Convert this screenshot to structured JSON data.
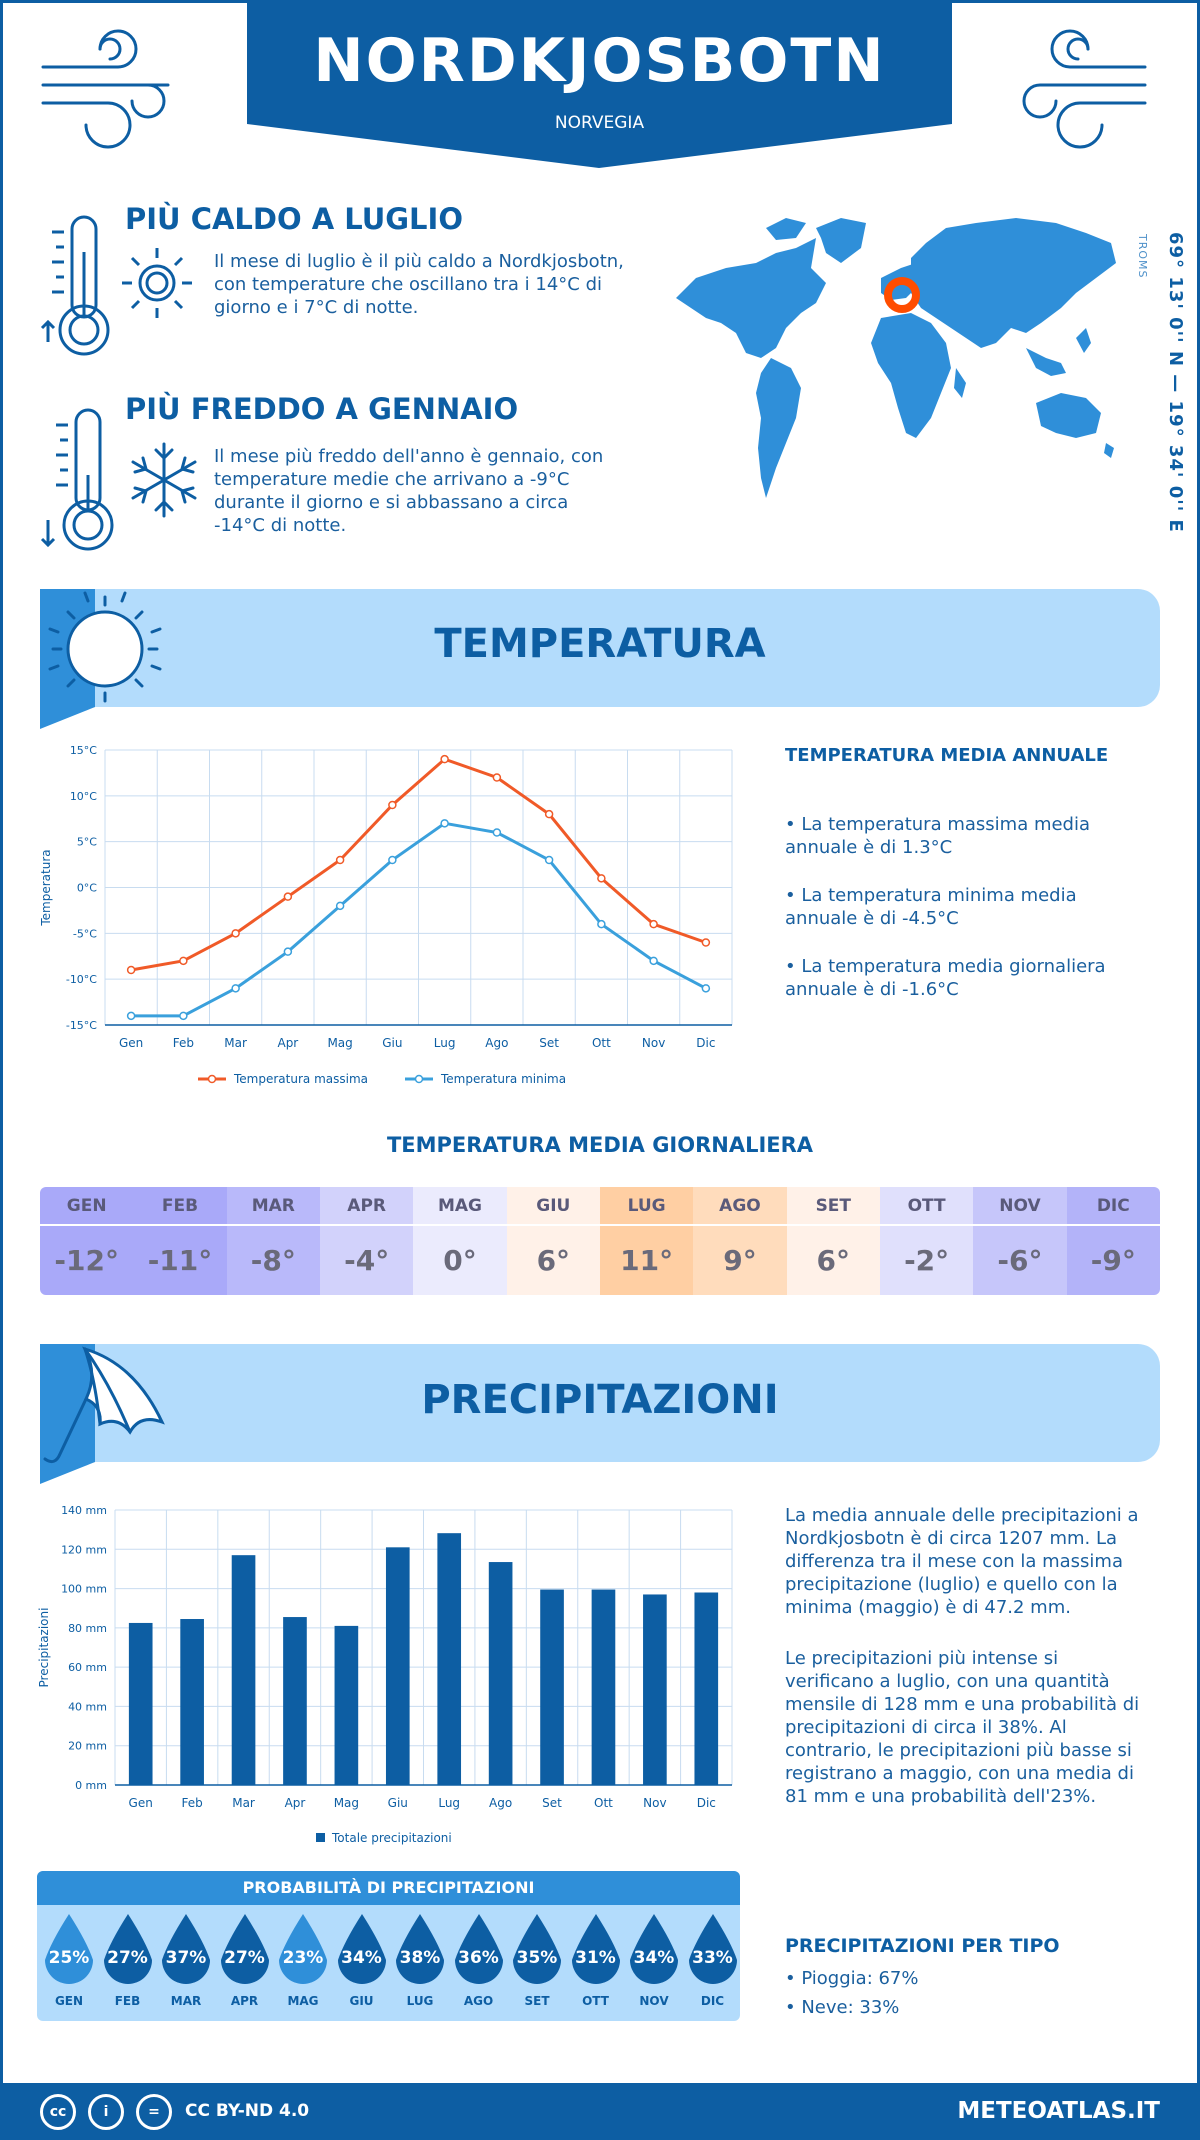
{
  "header": {
    "city": "NORDKJOSBOTN",
    "country": "NORVEGIA"
  },
  "warm": {
    "title": "PIÙ CALDO A LUGLIO",
    "text": "Il mese di luglio è il più caldo a Nordkjosbotn, con temperature che oscillano tra i 14°C di giorno e i 7°C di notte."
  },
  "cold": {
    "title": "PIÙ FREDDO A GENNAIO",
    "text": "Il mese più freddo dell'anno è gennaio, con temperature medie che arrivano a -9°C durante il giorno e si abbassano a circa -14°C di notte."
  },
  "location": {
    "coords": "69° 13' 0'' N — 19° 34' 0'' E",
    "region": "TROMS"
  },
  "temperature_section": {
    "title": "TEMPERATURA",
    "annual_title": "TEMPERATURA MEDIA ANNUALE",
    "annual_max": "• La temperatura massima media annuale è di 1.3°C",
    "annual_min": "• La temperatura minima media annuale è di -4.5°C",
    "annual_avg": "• La temperatura media giornaliera annuale è di -1.6°C",
    "daily_title": "TEMPERATURA MEDIA GIORNALIERA"
  },
  "daily": [
    {
      "m": "GEN",
      "v": "-12°",
      "bg": "#a9a9f9"
    },
    {
      "m": "FEB",
      "v": "-11°",
      "bg": "#a9a9f9"
    },
    {
      "m": "MAR",
      "v": "-8°",
      "bg": "#b9b9fa"
    },
    {
      "m": "APR",
      "v": "-4°",
      "bg": "#d2d2fb"
    },
    {
      "m": "MAG",
      "v": "0°",
      "bg": "#ebebfd"
    },
    {
      "m": "GIU",
      "v": "6°",
      "bg": "#fff1e8"
    },
    {
      "m": "LUG",
      "v": "11°",
      "bg": "#ffcfa3"
    },
    {
      "m": "AGO",
      "v": "9°",
      "bg": "#ffdcbc"
    },
    {
      "m": "SET",
      "v": "6°",
      "bg": "#fff1e8"
    },
    {
      "m": "OTT",
      "v": "-2°",
      "bg": "#e0e0fc"
    },
    {
      "m": "NOV",
      "v": "-6°",
      "bg": "#c6c6fa"
    },
    {
      "m": "DIC",
      "v": "-9°",
      "bg": "#b3b3f9"
    }
  ],
  "precip_section": {
    "title": "PRECIPITAZIONI",
    "text1": "La media annuale delle precipitazioni a Nordkjosbotn è di circa 1207 mm. La differenza tra il mese con la massima precipitazione (luglio) e quello con la minima (maggio) è di 47.2 mm.",
    "text2": "Le precipitazioni più intense si verificano a luglio, con una quantità mensile di 128 mm e una probabilità di precipitazioni di circa il 38%. Al contrario, le precipitazioni più basse si registrano a maggio, con una media di 81 mm e una probabilità dell'23%.",
    "prob_title": "PROBABILITÀ DI PRECIPITAZIONI",
    "type_title": "PRECIPITAZIONI PER TIPO",
    "rain": "• Pioggia: 67%",
    "snow": "• Neve: 33%"
  },
  "probability": [
    {
      "m": "GEN",
      "p": "25%",
      "c": "#2f8fd9"
    },
    {
      "m": "FEB",
      "p": "27%",
      "c": "#0d5ea3"
    },
    {
      "m": "MAR",
      "p": "37%",
      "c": "#0d5ea3"
    },
    {
      "m": "APR",
      "p": "27%",
      "c": "#0d5ea3"
    },
    {
      "m": "MAG",
      "p": "23%",
      "c": "#2f8fd9"
    },
    {
      "m": "GIU",
      "p": "34%",
      "c": "#0d5ea3"
    },
    {
      "m": "LUG",
      "p": "38%",
      "c": "#0d5ea3"
    },
    {
      "m": "AGO",
      "p": "36%",
      "c": "#0d5ea3"
    },
    {
      "m": "SET",
      "p": "35%",
      "c": "#0d5ea3"
    },
    {
      "m": "OTT",
      "p": "31%",
      "c": "#0d5ea3"
    },
    {
      "m": "NOV",
      "p": "34%",
      "c": "#0d5ea3"
    },
    {
      "m": "DIC",
      "p": "33%",
      "c": "#0d5ea3"
    }
  ],
  "footer": {
    "license": "CC BY-ND 4.0",
    "site": "METEOATLAS.IT",
    "cc1": "cc",
    "cc2": "i",
    "cc3": "="
  },
  "chart_data": [
    {
      "type": "line",
      "categories": [
        "Gen",
        "Feb",
        "Mar",
        "Apr",
        "Mag",
        "Giu",
        "Lug",
        "Ago",
        "Set",
        "Ott",
        "Nov",
        "Dic"
      ],
      "series": [
        {
          "name": "Temperatura massima",
          "values": [
            -9,
            -8,
            -5,
            -1,
            3,
            9,
            14,
            12,
            8,
            1,
            -4,
            -6
          ],
          "color": "#f05a28"
        },
        {
          "name": "Temperatura minima",
          "values": [
            -14,
            -14,
            -11,
            -7,
            -2,
            3,
            7,
            6,
            3,
            -4,
            -8,
            -11
          ],
          "color": "#3aa0dc"
        }
      ],
      "ylabel": "Temperatura",
      "yticks": [
        "15°C",
        "10°C",
        "5°C",
        "0°C",
        "-5°C",
        "-10°C",
        "-15°C"
      ],
      "ylim": [
        -15,
        15
      ]
    },
    {
      "type": "bar",
      "categories": [
        "Gen",
        "Feb",
        "Mar",
        "Apr",
        "Mag",
        "Giu",
        "Lug",
        "Ago",
        "Set",
        "Ott",
        "Nov",
        "Dic"
      ],
      "series": [
        {
          "name": "Totale precipitazioni",
          "values": [
            82.5,
            84.5,
            117,
            85.5,
            81,
            121,
            128.2,
            113.5,
            99.5,
            99.5,
            97,
            98
          ],
          "color": "#0d5ea3"
        }
      ],
      "ylabel": "Precipitazioni",
      "yticks": [
        "140 mm",
        "120 mm",
        "100 mm",
        "80 mm",
        "60 mm",
        "40 mm",
        "20 mm",
        "0 mm"
      ],
      "ylim": [
        0,
        140
      ]
    }
  ]
}
